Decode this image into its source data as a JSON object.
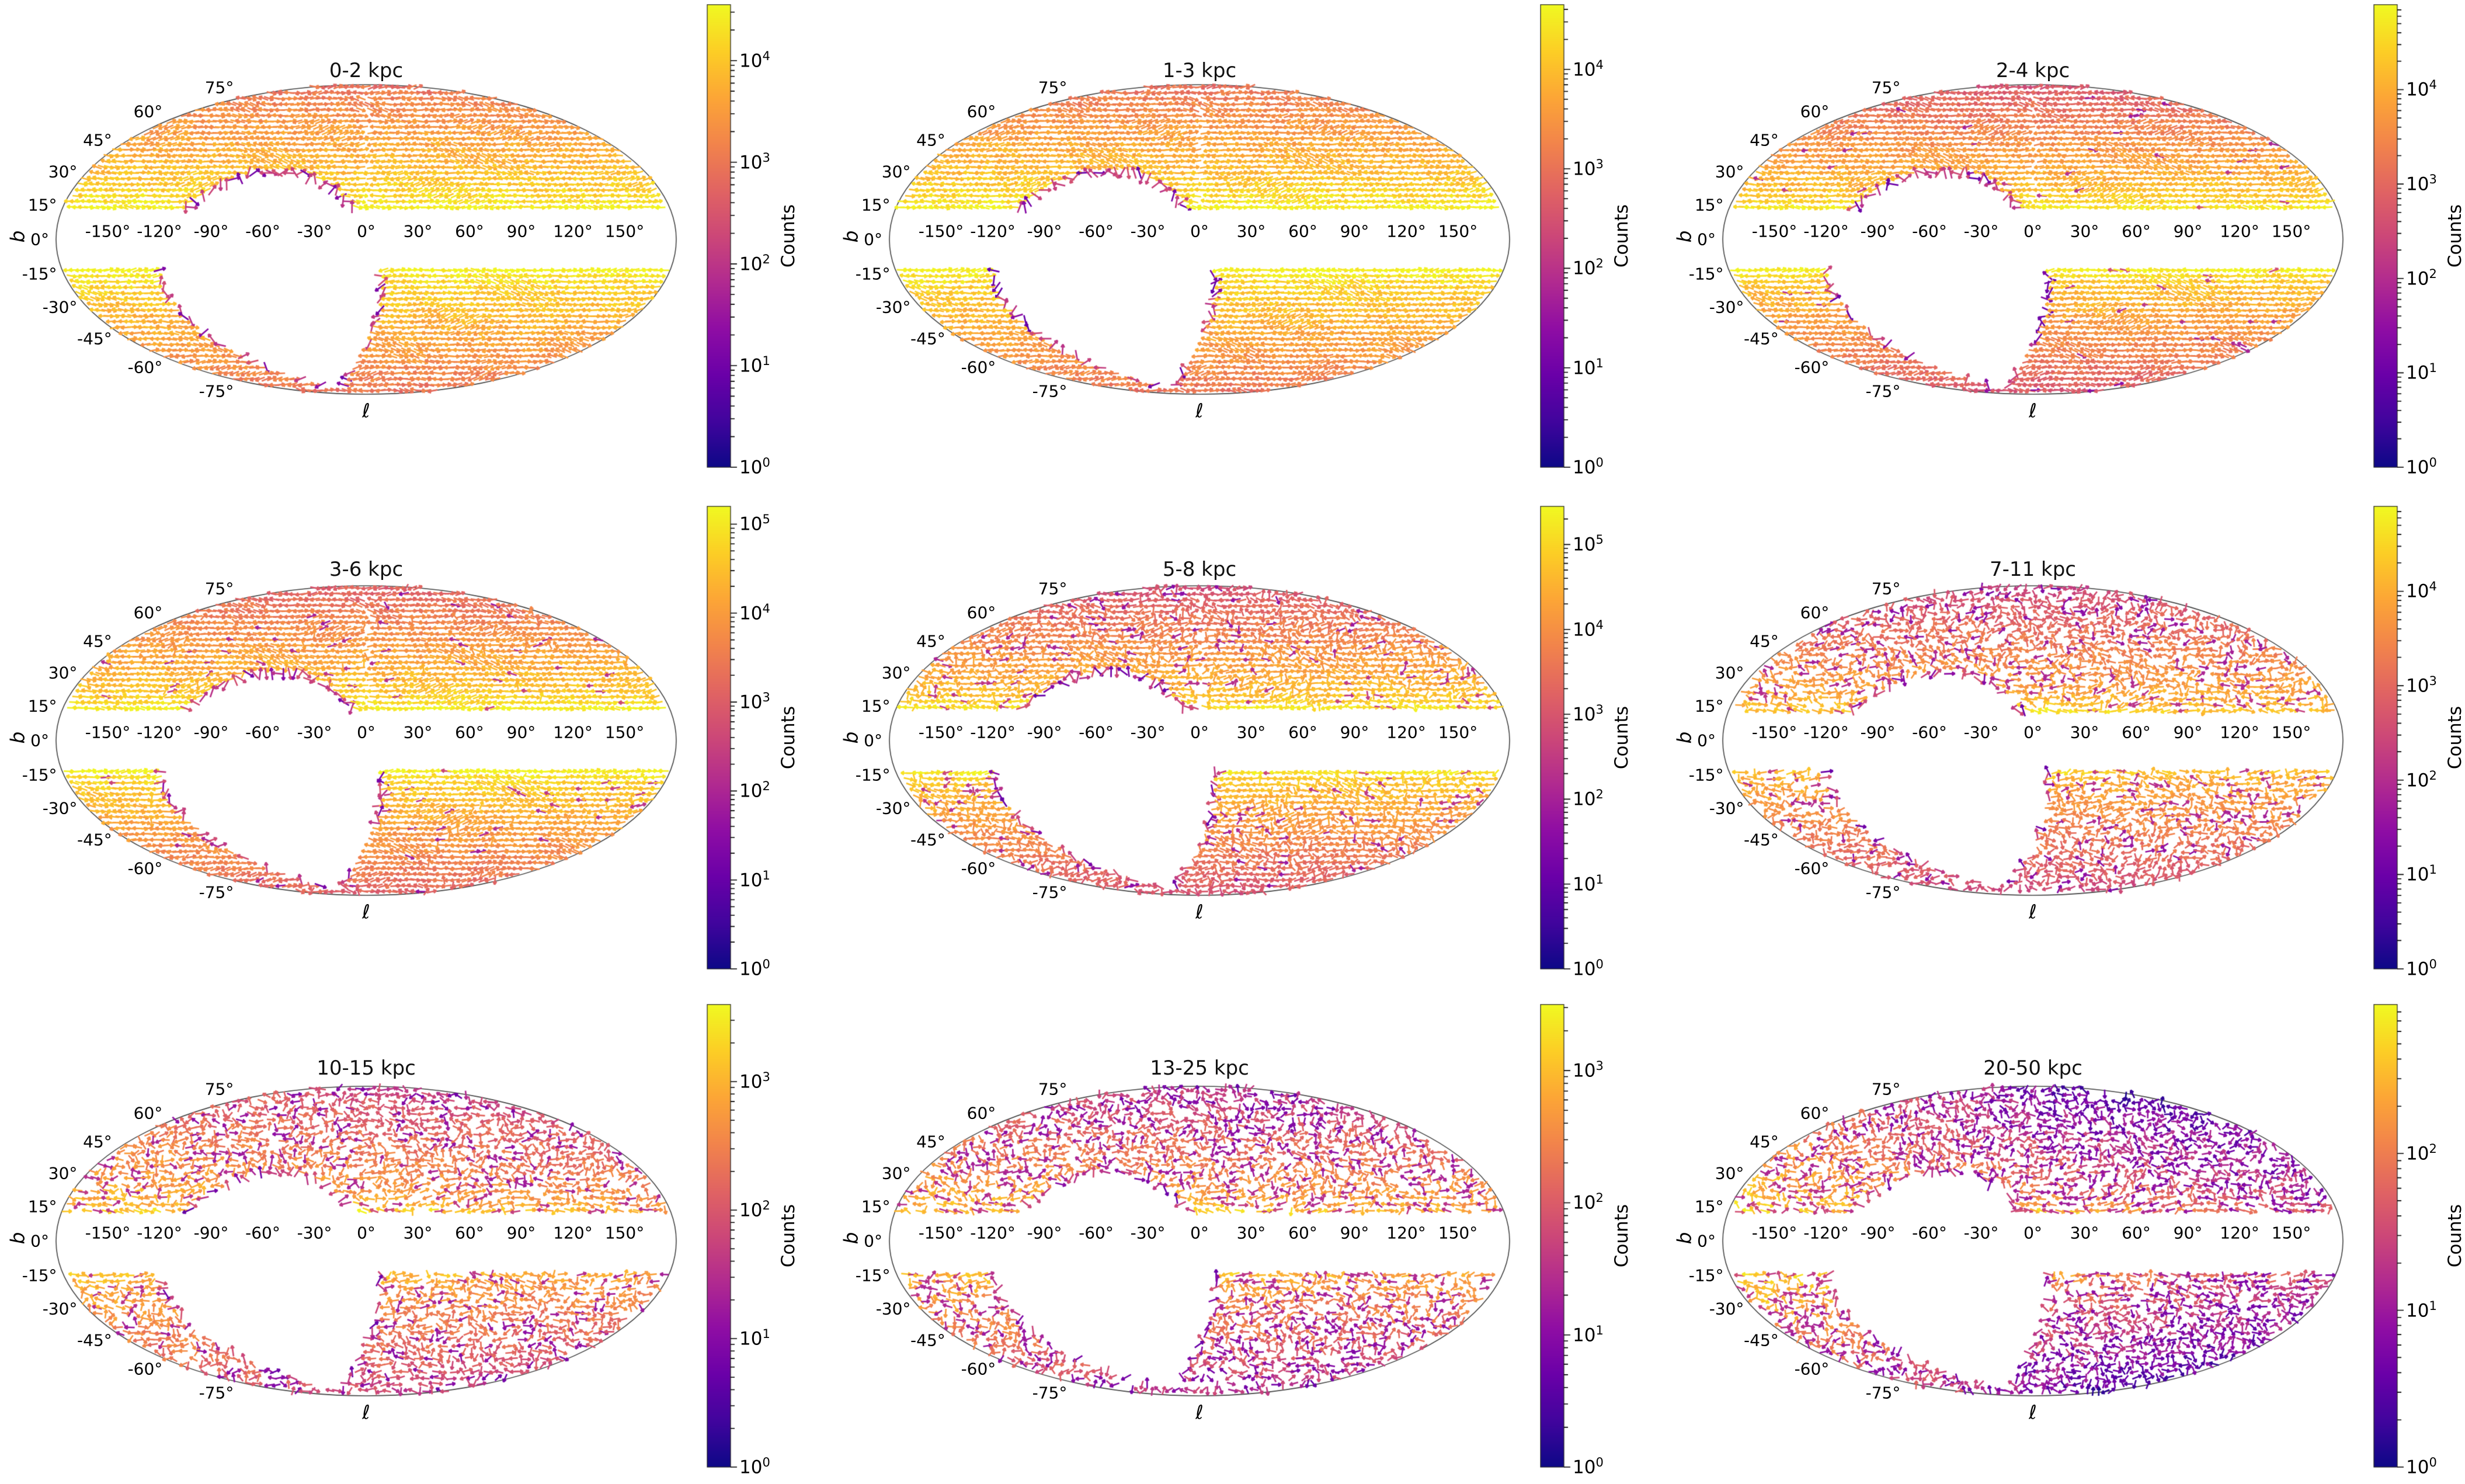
{
  "figure": {
    "description": "3x3 grid of Mollweide all-sky proper-motion quiver maps in galactic coordinates, one per heliocentric distance bin, colored by star counts (log scale, plasma colormap)",
    "axis": {
      "xlabel": "ℓ",
      "ylabel": "b",
      "lat_ticks": [
        "75°",
        "60°",
        "45°",
        "30°",
        "15°",
        "0°",
        "-15°",
        "-30°",
        "-45°",
        "-60°",
        "-75°"
      ],
      "lat_deg": [
        75,
        60,
        45,
        30,
        15,
        0,
        -15,
        -30,
        -45,
        -60,
        -75
      ],
      "lon_ticks": [
        "-150°",
        "-120°",
        "-90°",
        "-60°",
        "-30°",
        "0°",
        "30°",
        "60°",
        "90°",
        "120°",
        "150°"
      ],
      "lon_deg": [
        -150,
        -120,
        -90,
        -60,
        -30,
        0,
        30,
        60,
        90,
        120,
        150
      ]
    },
    "colorbar_label": "Counts",
    "colormap": "plasma",
    "cmap_colors": [
      "#0d0887",
      "#41049d",
      "#6a00a8",
      "#8f0da4",
      "#b12a90",
      "#cc4778",
      "#e16462",
      "#f2844b",
      "#fca636",
      "#fcce25",
      "#f0f921"
    ],
    "masked_regions": {
      "galactic_plane_band_deg": 13,
      "footprint_hole": "unobserved region, roughly elliptical, centered near l=-57 b=-24, extent ~65x56 deg"
    }
  },
  "chart_data": [
    {
      "type": "heatmap",
      "projection": "mollweide",
      "title": "0-2 kpc",
      "colorbar": {
        "label": "Counts",
        "scale": "log",
        "vmin": 1,
        "tick_exponents": [
          4,
          3,
          2,
          1,
          0
        ],
        "vmax_exp": 4.55
      },
      "field": {
        "plane_exp": 4.35,
        "pole_exp": 2.85,
        "order": 1.0,
        "purple_frac": 0.0,
        "step": 9.8,
        "edge_scale": 0,
        "edge_center": 0,
        "west_boost": 0,
        "meridian_gap": true,
        "seed": 11
      }
    },
    {
      "type": "heatmap",
      "projection": "mollweide",
      "title": "1-3 kpc",
      "colorbar": {
        "label": "Counts",
        "scale": "log",
        "vmin": 1,
        "tick_exponents": [
          4,
          3,
          2,
          1,
          0
        ],
        "vmax_exp": 4.65
      },
      "field": {
        "plane_exp": 4.45,
        "pole_exp": 2.9,
        "order": 1.0,
        "purple_frac": 0.0,
        "step": 9.8,
        "edge_scale": 0,
        "edge_center": 0,
        "west_boost": 0,
        "meridian_gap": true,
        "seed": 22
      }
    },
    {
      "type": "heatmap",
      "projection": "mollweide",
      "title": "2-4 kpc",
      "colorbar": {
        "label": "Counts",
        "scale": "log",
        "vmin": 1,
        "tick_exponents": [
          4,
          3,
          2,
          1,
          0
        ],
        "vmax_exp": 4.9
      },
      "field": {
        "plane_exp": 4.55,
        "pole_exp": 2.6,
        "order": 1.0,
        "purple_frac": 0.02,
        "step": 9.8,
        "edge_scale": 0,
        "edge_center": 0,
        "west_boost": 0,
        "meridian_gap": true,
        "seed": 33
      }
    },
    {
      "type": "heatmap",
      "projection": "mollweide",
      "title": "3-6 kpc",
      "colorbar": {
        "label": "Counts",
        "scale": "log",
        "vmin": 1,
        "tick_exponents": [
          5,
          4,
          3,
          2,
          1,
          0
        ],
        "vmax_exp": 5.2
      },
      "field": {
        "plane_exp": 4.9,
        "pole_exp": 2.95,
        "order": 0.95,
        "purple_frac": 0.03,
        "step": 9.8,
        "edge_scale": 0,
        "edge_center": 0,
        "west_boost": 0,
        "meridian_gap": true,
        "seed": 44
      }
    },
    {
      "type": "heatmap",
      "projection": "mollweide",
      "title": "5-8 kpc",
      "colorbar": {
        "label": "Counts",
        "scale": "log",
        "vmin": 1,
        "tick_exponents": [
          5,
          4,
          3,
          2,
          1,
          0
        ],
        "vmax_exp": 5.45
      },
      "field": {
        "plane_exp": 5.0,
        "pole_exp": 2.8,
        "order": 0.6,
        "purple_frac": 0.08,
        "step": 10.2,
        "edge_scale": 0,
        "edge_center": 0,
        "west_boost": 0,
        "meridian_gap": true,
        "seed": 55
      }
    },
    {
      "type": "heatmap",
      "projection": "mollweide",
      "title": "7-11 kpc",
      "colorbar": {
        "label": "Counts",
        "scale": "log",
        "vmin": 1,
        "tick_exponents": [
          4,
          3,
          2,
          1,
          0
        ],
        "vmax_exp": 4.9
      },
      "field": {
        "plane_exp": 4.2,
        "pole_exp": 2.3,
        "order": 0.3,
        "purple_frac": 0.15,
        "step": 10.5,
        "edge_scale": 70,
        "edge_center": 5,
        "west_boost": 0,
        "meridian_gap": false,
        "seed": 66
      }
    },
    {
      "type": "heatmap",
      "projection": "mollweide",
      "title": "10-15 kpc",
      "colorbar": {
        "label": "Counts",
        "scale": "log",
        "vmin": 1,
        "tick_exponents": [
          3,
          2,
          1,
          0
        ],
        "vmax_exp": 3.6
      },
      "field": {
        "plane_exp": 2.95,
        "pole_exp": 1.7,
        "order": 0.3,
        "purple_frac": 0.18,
        "step": 11,
        "edge_scale": 110,
        "edge_center": 5,
        "west_boost": 0.15,
        "meridian_gap": false,
        "seed": 77
      }
    },
    {
      "type": "heatmap",
      "projection": "mollweide",
      "title": "13-25 kpc",
      "colorbar": {
        "label": "Counts",
        "scale": "log",
        "vmin": 1,
        "tick_exponents": [
          3,
          2,
          1,
          0
        ],
        "vmax_exp": 3.5
      },
      "field": {
        "plane_exp": 2.9,
        "pole_exp": 1.45,
        "order": 0.15,
        "purple_frac": 0.32,
        "step": 11,
        "edge_scale": 70,
        "edge_center": 5,
        "west_boost": 0.1,
        "meridian_gap": false,
        "seed": 88
      }
    },
    {
      "type": "heatmap",
      "projection": "mollweide",
      "title": "20-50 kpc",
      "colorbar": {
        "label": "Counts",
        "scale": "log",
        "vmin": 1,
        "tick_exponents": [
          2,
          1,
          0
        ],
        "vmax_exp": 2.95
      },
      "field": {
        "plane_exp": 2.2,
        "pole_exp": 0.8,
        "order": 0.15,
        "purple_frac": 0.38,
        "step": 11,
        "edge_scale": 45,
        "edge_center": 8,
        "west_boost": 0.5,
        "meridian_gap": false,
        "seed": 99
      }
    }
  ]
}
